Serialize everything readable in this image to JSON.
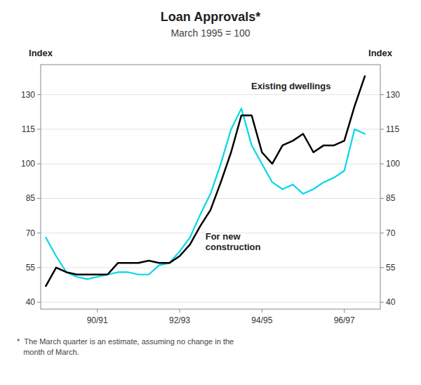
{
  "chart_data": {
    "type": "line",
    "title": "Loan Approvals*",
    "subtitle": "March 1995 = 100",
    "ylabel": "Index",
    "y2label": "Index",
    "footnote": "*  The March quarter is an estimate, assuming no change in the\n   month of March.",
    "x": [
      0,
      1,
      2,
      3,
      4,
      5,
      6,
      7,
      8,
      9,
      10,
      11,
      12,
      13,
      14,
      15,
      16,
      17,
      18,
      19,
      20,
      21,
      22,
      23,
      24,
      25,
      26,
      27,
      28,
      29,
      30,
      31
    ],
    "xlim": [
      -0.5,
      32.5
    ],
    "xticks": [
      {
        "value": 5,
        "label": "90/91"
      },
      {
        "value": 13,
        "label": "92/93"
      },
      {
        "value": 21,
        "label": "94/95"
      },
      {
        "value": 29,
        "label": "96/97"
      }
    ],
    "ylim": [
      37,
      143
    ],
    "yticks": [
      40,
      55,
      70,
      85,
      100,
      115,
      130
    ],
    "y2lim": [
      37,
      143
    ],
    "y2ticks": [
      40,
      55,
      70,
      85,
      100,
      115,
      130
    ],
    "grid": true,
    "series": [
      {
        "name": "Existing dwellings",
        "color": "#000000",
        "values": [
          47,
          55,
          53,
          52,
          52,
          52,
          52,
          57,
          57,
          57,
          58,
          57,
          57,
          60,
          65,
          73,
          80,
          92,
          105,
          121,
          121,
          105,
          100,
          108,
          110,
          113,
          105,
          108,
          108,
          110,
          125,
          138
        ]
      },
      {
        "name": "For new\nconstruction",
        "color": "#00d8e8",
        "values": [
          68,
          60,
          53,
          51,
          50,
          51,
          52,
          53,
          53,
          52,
          52,
          56,
          57,
          62,
          68,
          78,
          87,
          100,
          115,
          124,
          108,
          100,
          92,
          89,
          91,
          87,
          89,
          92,
          94,
          97,
          115,
          113
        ]
      }
    ]
  }
}
